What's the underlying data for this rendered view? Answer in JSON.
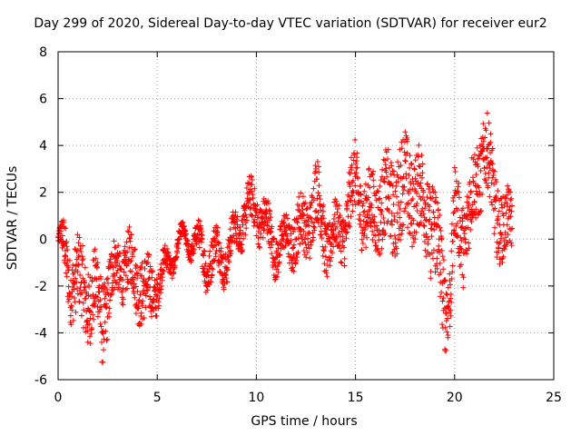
{
  "chart_data": {
    "type": "scatter",
    "title": "Day 299 of 2020, Sidereal Day-to-day VTEC variation (SDTVAR) for receiver eur2",
    "xlabel": "GPS time / hours",
    "ylabel": "SDTVAR / TECUs",
    "xlim": [
      0,
      25
    ],
    "ylim": [
      -6,
      8
    ],
    "xticks": [
      0,
      5,
      10,
      15,
      20,
      25
    ],
    "yticks": [
      -6,
      -4,
      -2,
      0,
      2,
      4,
      6,
      8
    ],
    "grid": true,
    "marker": "+",
    "color": "#ff0000",
    "series": [
      {
        "name": "SDTVAR",
        "envelope_x": [
          0,
          0.3,
          0.6,
          1.0,
          1.5,
          2.0,
          2.2,
          2.5,
          3.0,
          3.5,
          4.0,
          4.5,
          5.0,
          5.5,
          6.0,
          6.5,
          7.0,
          7.5,
          8.0,
          8.5,
          9.0,
          9.5,
          10.0,
          10.5,
          11.0,
          11.5,
          12.0,
          12.5,
          13.0,
          13.5,
          14.0,
          14.5,
          15.0,
          15.5,
          16.0,
          16.5,
          17.0,
          17.5,
          18.0,
          18.5,
          19.0,
          19.5,
          19.8,
          20.0,
          20.5,
          21.0,
          21.5,
          22.0,
          22.5,
          22.9
        ],
        "envelope_center": [
          0,
          -0.8,
          -2.0,
          -2.2,
          -2.5,
          -2.0,
          -3.0,
          -2.0,
          -1.2,
          -1.5,
          -2.0,
          -2.5,
          -1.5,
          -0.8,
          -0.3,
          -0.4,
          -0.5,
          -1.0,
          -0.2,
          -0.5,
          0.3,
          0.8,
          1.0,
          0.5,
          0.0,
          0.2,
          0.3,
          0.0,
          1.5,
          0.0,
          0.5,
          1.0,
          2.5,
          0.5,
          1.0,
          1.5,
          2.0,
          2.5,
          2.0,
          1.0,
          0.0,
          -2.5,
          -2.0,
          1.5,
          0.5,
          2.0,
          3.5,
          1.5,
          0.0,
          1.5
        ],
        "envelope_spread": [
          0.2,
          1.0,
          1.4,
          1.6,
          1.7,
          1.5,
          1.8,
          1.5,
          1.0,
          1.2,
          1.4,
          1.4,
          0.8,
          0.5,
          0.3,
          0.3,
          0.5,
          0.9,
          0.8,
          0.8,
          0.7,
          0.9,
          0.9,
          0.9,
          0.9,
          0.8,
          1.2,
          1.2,
          1.4,
          1.2,
          1.0,
          1.2,
          1.5,
          1.4,
          1.6,
          1.8,
          2.0,
          2.2,
          1.8,
          1.8,
          2.2,
          1.8,
          1.5,
          1.5,
          1.8,
          1.6,
          1.6,
          1.6,
          1.4,
          1.2
        ]
      }
    ]
  }
}
